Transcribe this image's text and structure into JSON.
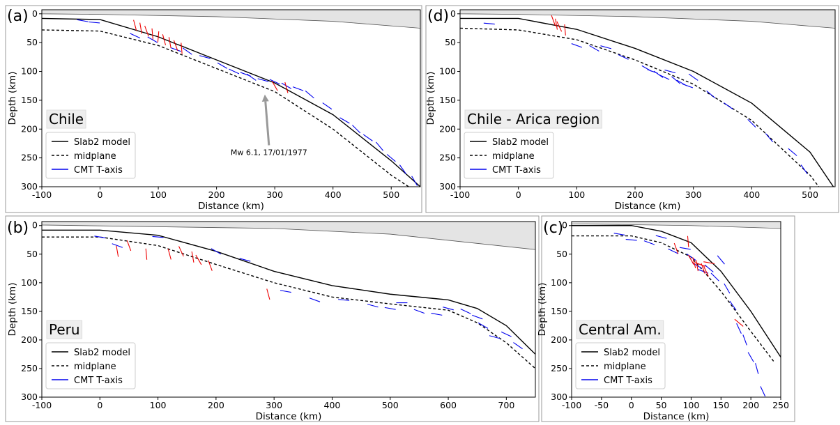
{
  "chart_data": [
    {
      "type": "line",
      "panel_label": "(a)",
      "region": "Chile",
      "xlabel": "Distance (km)",
      "ylabel": "Depth (km)",
      "xlim": [
        -100,
        550
      ],
      "ylim": [
        300,
        -7
      ],
      "xticks": [
        -100,
        0,
        100,
        200,
        300,
        400,
        500
      ],
      "yticks": [
        0,
        50,
        100,
        150,
        200,
        250,
        300
      ],
      "surface": {
        "x": [
          -100,
          0,
          200,
          400,
          550
        ],
        "values": [
          0,
          1,
          5,
          13,
          25
        ]
      },
      "series": [
        {
          "type": "line",
          "name": "Slab2 model",
          "color": "#000000",
          "dash": false,
          "x": [
            -100,
            0,
            100,
            200,
            300,
            400,
            500,
            550
          ],
          "values": [
            8,
            10,
            40,
            80,
            120,
            175,
            255,
            300
          ]
        },
        {
          "type": "line",
          "name": "midplane",
          "color": "#000000",
          "dash": true,
          "x": [
            -100,
            0,
            100,
            200,
            300,
            400,
            500,
            530
          ],
          "values": [
            28,
            30,
            55,
            95,
            135,
            200,
            280,
            300
          ]
        },
        {
          "type": "segment",
          "name": "CMT T-axis",
          "color": "#0000ee",
          "x": [
            -30,
            -10,
            60,
            90,
            130,
            150,
            180,
            210,
            230,
            250,
            260,
            280,
            300,
            320,
            340,
            360,
            390,
            420,
            440,
            460,
            480,
            500,
            520,
            540
          ],
          "values": [
            12,
            15,
            38,
            45,
            62,
            65,
            75,
            90,
            100,
            105,
            110,
            115,
            118,
            125,
            130,
            140,
            160,
            185,
            200,
            215,
            230,
            250,
            270,
            290
          ],
          "angle": [
            10,
            5,
            25,
            30,
            20,
            35,
            15,
            30,
            25,
            20,
            35,
            15,
            25,
            30,
            20,
            40,
            35,
            30,
            45,
            35,
            50,
            40,
            55,
            60
          ]
        },
        {
          "type": "segment",
          "color": "#ee0000",
          "x": [
            60,
            70,
            80,
            90,
            100,
            110,
            120,
            130,
            140,
            300,
            320
          ],
          "values": [
            20,
            25,
            30,
            35,
            40,
            45,
            50,
            55,
            60,
            125,
            128
          ],
          "angle": [
            75,
            80,
            70,
            85,
            95,
            75,
            80,
            70,
            85,
            60,
            75
          ]
        }
      ],
      "annotation": {
        "text": "Mw 6.1, 17/01/1977",
        "x": 290,
        "y": 245,
        "xy": [
          283,
          140
        ]
      }
    },
    {
      "type": "line",
      "panel_label": "(d)",
      "region": "Chile - Arica region",
      "xlabel": "Distance (km)",
      "ylabel": "Depth (km)",
      "xlim": [
        -100,
        543
      ],
      "ylim": [
        300,
        -7
      ],
      "xticks": [
        -100,
        0,
        100,
        200,
        300,
        400,
        500
      ],
      "yticks": [
        0,
        50,
        100,
        150,
        200,
        250,
        300
      ],
      "surface": {
        "x": [
          -100,
          0,
          200,
          400,
          543
        ],
        "values": [
          0,
          1,
          5,
          13,
          25
        ]
      },
      "series": [
        {
          "type": "line",
          "name": "Slab2 model",
          "color": "#000000",
          "dash": false,
          "x": [
            -100,
            0,
            100,
            200,
            300,
            400,
            500,
            540
          ],
          "values": [
            8,
            8,
            27,
            60,
            100,
            155,
            240,
            300
          ]
        },
        {
          "type": "line",
          "name": "midplane",
          "color": "#000000",
          "dash": true,
          "x": [
            -100,
            0,
            100,
            200,
            300,
            400,
            500,
            515
          ],
          "values": [
            25,
            28,
            45,
            80,
            122,
            185,
            280,
            300
          ]
        },
        {
          "type": "segment",
          "name": "CMT T-axis",
          "color": "#0000ee",
          "x": [
            -50,
            100,
            130,
            150,
            180,
            220,
            230,
            240,
            250,
            260,
            270,
            280,
            290,
            300,
            330,
            360,
            400,
            430,
            470,
            490
          ],
          "values": [
            17,
            55,
            60,
            58,
            75,
            95,
            100,
            105,
            110,
            100,
            115,
            120,
            125,
            110,
            140,
            160,
            190,
            215,
            240,
            270
          ],
          "angle": [
            5,
            20,
            30,
            15,
            25,
            30,
            20,
            35,
            25,
            15,
            40,
            30,
            20,
            35,
            40,
            35,
            45,
            50,
            40,
            55
          ]
        },
        {
          "type": "segment",
          "color": "#ee0000",
          "x": [
            60,
            65,
            70,
            80
          ],
          "values": [
            12,
            18,
            22,
            28
          ],
          "angle": [
            70,
            80,
            65,
            85
          ]
        }
      ]
    },
    {
      "type": "line",
      "panel_label": "(b)",
      "region": "Peru",
      "xlabel": "Distance (km)",
      "ylabel": "Depth (km)",
      "xlim": [
        -100,
        750
      ],
      "ylim": [
        300,
        -7
      ],
      "xticks": [
        -100,
        0,
        100,
        200,
        300,
        400,
        500,
        600,
        700
      ],
      "yticks": [
        0,
        50,
        100,
        150,
        200,
        250,
        300
      ],
      "surface": {
        "x": [
          -100,
          300,
          500,
          750
        ],
        "values": [
          -1,
          5,
          15,
          42
        ]
      },
      "series": [
        {
          "type": "line",
          "name": "Slab2 model",
          "color": "#000000",
          "dash": false,
          "x": [
            -100,
            0,
            100,
            200,
            300,
            400,
            500,
            600,
            650,
            700,
            750
          ],
          "values": [
            8,
            8,
            17,
            45,
            80,
            105,
            120,
            130,
            145,
            175,
            225
          ]
        },
        {
          "type": "line",
          "name": "midplane",
          "color": "#000000",
          "dash": true,
          "x": [
            -100,
            0,
            100,
            200,
            300,
            400,
            500,
            600,
            650,
            700,
            750
          ],
          "values": [
            20,
            20,
            35,
            68,
            100,
            125,
            137,
            148,
            170,
            205,
            250
          ]
        },
        {
          "type": "segment",
          "name": "CMT T-axis",
          "color": "#0000ee",
          "x": [
            0,
            30,
            100,
            200,
            250,
            320,
            370,
            420,
            470,
            500,
            520,
            550,
            580,
            600,
            630,
            650,
            660,
            680,
            700,
            720
          ],
          "values": [
            20,
            35,
            20,
            45,
            60,
            115,
            130,
            130,
            140,
            145,
            135,
            150,
            155,
            145,
            150,
            160,
            175,
            195,
            190,
            210
          ],
          "angle": [
            10,
            20,
            5,
            30,
            15,
            10,
            20,
            5,
            15,
            10,
            0,
            20,
            10,
            15,
            25,
            20,
            30,
            15,
            25,
            35
          ]
        },
        {
          "type": "segment",
          "color": "#ee0000",
          "x": [
            30,
            50,
            80,
            120,
            140,
            160,
            170,
            190,
            290
          ],
          "values": [
            45,
            35,
            50,
            50,
            45,
            55,
            60,
            70,
            120
          ],
          "angle": [
            80,
            70,
            85,
            75,
            65,
            80,
            60,
            70,
            75
          ]
        }
      ]
    },
    {
      "type": "line",
      "panel_label": "(c)",
      "region": "Central Am.",
      "xlabel": "Distance (km)",
      "ylabel": "Depth (km)",
      "xlim": [
        -100,
        250
      ],
      "ylim": [
        300,
        -7
      ],
      "xticks": [
        -100,
        -50,
        0,
        50,
        100,
        150,
        200,
        250
      ],
      "yticks": [
        0,
        50,
        100,
        150,
        200,
        250,
        300
      ],
      "surface": {
        "x": [
          -100,
          100,
          250
        ],
        "values": [
          -3,
          0,
          5
        ]
      },
      "series": [
        {
          "type": "line",
          "name": "Slab2 model",
          "color": "#000000",
          "dash": false,
          "x": [
            -100,
            0,
            50,
            100,
            150,
            200,
            250
          ],
          "values": [
            0,
            0,
            10,
            30,
            80,
            150,
            230
          ]
        },
        {
          "type": "line",
          "name": "midplane",
          "color": "#000000",
          "dash": true,
          "x": [
            -100,
            0,
            50,
            100,
            150,
            200,
            240
          ],
          "values": [
            18,
            18,
            30,
            55,
            115,
            185,
            240
          ]
        },
        {
          "type": "segment",
          "name": "CMT T-axis",
          "color": "#0000ee",
          "x": [
            -20,
            0,
            30,
            50,
            70,
            90,
            100,
            110,
            120,
            130,
            140,
            150,
            160,
            170,
            180,
            190,
            200,
            210,
            220
          ],
          "values": [
            15,
            25,
            30,
            20,
            45,
            40,
            55,
            70,
            80,
            75,
            90,
            60,
            110,
            140,
            180,
            200,
            230,
            250,
            290
          ],
          "angle": [
            10,
            5,
            20,
            15,
            25,
            10,
            35,
            30,
            20,
            40,
            45,
            50,
            60,
            55,
            65,
            70,
            60,
            75,
            65
          ]
        },
        {
          "type": "segment",
          "color": "#ee0000",
          "x": [
            75,
            95,
            100,
            105,
            110,
            115,
            120,
            125,
            130,
            180
          ],
          "values": [
            40,
            28,
            60,
            65,
            70,
            68,
            75,
            80,
            65,
            170
          ],
          "angle": [
            70,
            85,
            60,
            75,
            80,
            20,
            70,
            65,
            10,
            40
          ]
        }
      ]
    }
  ]
}
